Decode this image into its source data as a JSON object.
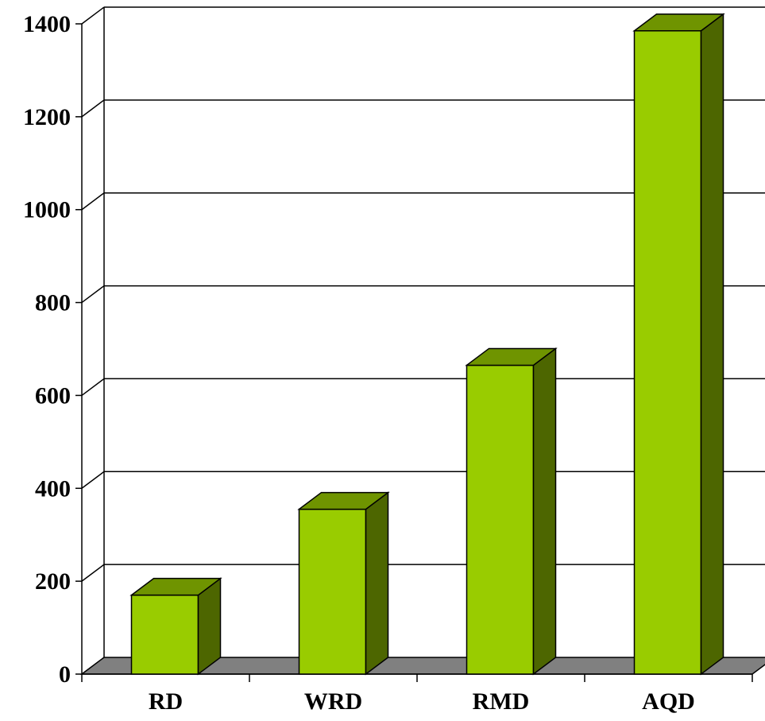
{
  "chart_data": {
    "type": "bar",
    "three_d": true,
    "title": "",
    "xlabel": "",
    "ylabel": "",
    "categories": [
      "RD",
      "WRD",
      "RMD",
      "AQD"
    ],
    "values": [
      170,
      355,
      665,
      1385
    ],
    "ylim": [
      0,
      1400
    ],
    "yticks": [
      "0",
      "200",
      "400",
      "600",
      "800",
      "1000",
      "1200",
      "1400"
    ],
    "grid": true,
    "legend": "none",
    "colors": {
      "bar_front": "#99cc00",
      "bar_top": "#6f9400",
      "bar_side": "#4d6600",
      "floor": "#808080",
      "outline": "#000000"
    }
  }
}
